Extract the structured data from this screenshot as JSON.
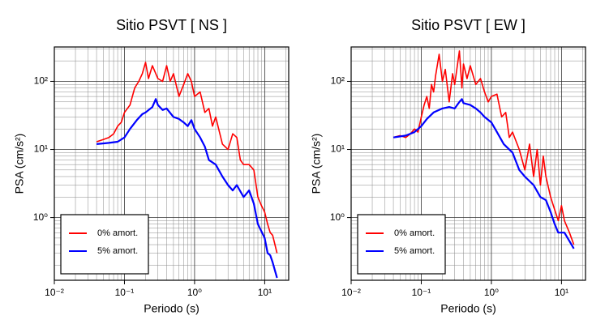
{
  "chart_data": [
    {
      "type": "line",
      "title": "Sitio PSVT [ NS ]",
      "xlabel": "Periodo (s)",
      "ylabel": "PSA (cm/s²)",
      "log_x": true,
      "log_y": true,
      "grid": true,
      "legend": "lower left",
      "xlim": [
        0.01,
        22
      ],
      "ylim": [
        0.12,
        320
      ],
      "xticks": [
        {
          "value": 0.01,
          "label": "10⁻²"
        },
        {
          "value": 0.1,
          "label": "10⁻¹"
        },
        {
          "value": 1,
          "label": "10⁰"
        },
        {
          "value": 10,
          "label": "10¹"
        }
      ],
      "yticks": [
        {
          "value": 1,
          "label": "10⁰"
        },
        {
          "value": 10,
          "label": "10¹"
        },
        {
          "value": 100,
          "label": "10²"
        }
      ],
      "series": [
        {
          "name": "0% amort.",
          "color": "#ff0000",
          "x": [
            0.04,
            0.05,
            0.06,
            0.07,
            0.08,
            0.09,
            0.1,
            0.12,
            0.14,
            0.16,
            0.18,
            0.2,
            0.22,
            0.25,
            0.28,
            0.3,
            0.35,
            0.4,
            0.45,
            0.5,
            0.6,
            0.7,
            0.8,
            0.9,
            1.0,
            1.2,
            1.4,
            1.6,
            1.8,
            2.0,
            2.5,
            3,
            3.5,
            4,
            4.5,
            5,
            6,
            7,
            8,
            9,
            10,
            11,
            12,
            13,
            15
          ],
          "values": [
            13,
            14,
            15,
            17,
            22,
            25,
            35,
            45,
            80,
            100,
            130,
            190,
            110,
            170,
            130,
            110,
            100,
            170,
            100,
            130,
            60,
            90,
            130,
            100,
            60,
            70,
            35,
            40,
            22,
            30,
            12,
            10,
            17,
            15,
            7,
            6,
            6,
            5,
            2,
            1.5,
            1.2,
            0.8,
            0.6,
            0.55,
            0.3
          ]
        },
        {
          "name": "5% amort.",
          "color": "#0000ff",
          "x": [
            0.04,
            0.06,
            0.08,
            0.1,
            0.12,
            0.15,
            0.18,
            0.2,
            0.25,
            0.28,
            0.3,
            0.35,
            0.4,
            0.5,
            0.6,
            0.7,
            0.8,
            0.9,
            1.0,
            1.2,
            1.4,
            1.6,
            2,
            2.5,
            3,
            3.5,
            4,
            5,
            6,
            7,
            8,
            10,
            11,
            12,
            13,
            15
          ],
          "values": [
            12,
            12.5,
            13,
            15,
            20,
            27,
            33,
            35,
            42,
            55,
            45,
            38,
            40,
            30,
            28,
            25,
            22,
            27,
            20,
            15,
            11,
            7,
            6,
            4,
            3,
            2.5,
            3,
            2,
            2.5,
            1.6,
            0.8,
            0.5,
            0.3,
            0.28,
            0.22,
            0.13
          ]
        }
      ]
    },
    {
      "type": "line",
      "title": "Sitio PSVT [ EW ]",
      "xlabel": "Periodo (s)",
      "ylabel": "PSA (cm/s²)",
      "log_x": true,
      "log_y": true,
      "grid": true,
      "legend": "lower left",
      "xlim": [
        0.01,
        22
      ],
      "ylim": [
        0.12,
        320
      ],
      "xticks": [
        {
          "value": 0.01,
          "label": "10⁻²"
        },
        {
          "value": 0.1,
          "label": "10⁻¹"
        },
        {
          "value": 1,
          "label": "10⁰"
        },
        {
          "value": 10,
          "label": "10¹"
        }
      ],
      "yticks": [
        {
          "value": 1,
          "label": "10⁰"
        },
        {
          "value": 10,
          "label": "10¹"
        },
        {
          "value": 100,
          "label": "10²"
        }
      ],
      "series": [
        {
          "name": "0% amort.",
          "color": "#ff0000",
          "x": [
            0.04,
            0.05,
            0.06,
            0.07,
            0.08,
            0.09,
            0.1,
            0.11,
            0.12,
            0.13,
            0.14,
            0.15,
            0.16,
            0.18,
            0.2,
            0.22,
            0.25,
            0.28,
            0.3,
            0.35,
            0.38,
            0.4,
            0.45,
            0.5,
            0.6,
            0.7,
            0.8,
            0.9,
            1.0,
            1.2,
            1.4,
            1.6,
            1.8,
            2,
            2.5,
            3,
            3.5,
            4,
            4.5,
            5,
            5.5,
            6,
            7,
            8,
            9,
            10,
            11,
            13,
            15
          ],
          "values": [
            15,
            16,
            15,
            17,
            20,
            18,
            30,
            45,
            60,
            40,
            90,
            70,
            120,
            250,
            100,
            150,
            50,
            130,
            90,
            280,
            80,
            180,
            110,
            170,
            90,
            110,
            70,
            50,
            60,
            65,
            30,
            35,
            15,
            18,
            10,
            5,
            12,
            4,
            10,
            3,
            8,
            4,
            2,
            1.3,
            0.9,
            1.5,
            0.9,
            0.6,
            0.4
          ]
        },
        {
          "name": "5% amort.",
          "color": "#0000ff",
          "x": [
            0.04,
            0.06,
            0.08,
            0.1,
            0.12,
            0.15,
            0.2,
            0.25,
            0.3,
            0.35,
            0.38,
            0.4,
            0.5,
            0.6,
            0.7,
            0.8,
            1.0,
            1.2,
            1.5,
            2,
            2.5,
            3,
            4,
            5,
            6,
            7,
            8,
            9,
            11,
            13,
            15
          ],
          "values": [
            15,
            16,
            18,
            22,
            28,
            35,
            40,
            42,
            40,
            50,
            55,
            48,
            45,
            40,
            35,
            30,
            25,
            18,
            12,
            9,
            5,
            4,
            3,
            2,
            1.8,
            1.2,
            0.8,
            0.6,
            0.6,
            0.45,
            0.35
          ]
        }
      ]
    }
  ]
}
